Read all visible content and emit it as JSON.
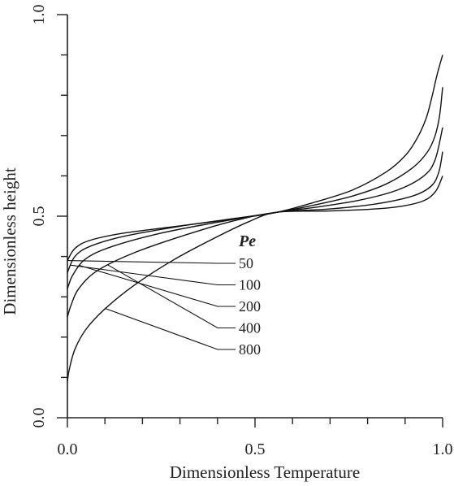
{
  "chart_data": {
    "type": "line",
    "title": "",
    "xlabel": "Dimensionless Temperature",
    "ylabel": "Dimensionless height",
    "xlim": [
      0.0,
      1.0
    ],
    "ylim": [
      0.0,
      1.0
    ],
    "x_tick_labels": [
      "0.0",
      "0.5",
      "1.0"
    ],
    "y_tick_labels": [
      "0.0",
      "0.5",
      "1.0"
    ],
    "x_ticks": [
      0.0,
      0.1,
      0.2,
      0.3,
      0.4,
      0.5,
      0.6,
      0.7,
      0.8,
      0.9,
      1.0
    ],
    "y_ticks": [
      0.0,
      0.1,
      0.2,
      0.3,
      0.4,
      0.5,
      0.6,
      0.7,
      0.8,
      0.9,
      1.0
    ],
    "grid": false,
    "legend": {
      "title": "Pe",
      "placement": "center-right"
    },
    "series": [
      {
        "name": "50",
        "points": [
          [
            0.0,
            0.39
          ],
          [
            0.02,
            0.42
          ],
          [
            0.06,
            0.44
          ],
          [
            0.15,
            0.458
          ],
          [
            0.3,
            0.476
          ],
          [
            0.45,
            0.494
          ],
          [
            0.56,
            0.51
          ],
          [
            0.66,
            0.535
          ],
          [
            0.76,
            0.565
          ],
          [
            0.85,
            0.61
          ],
          [
            0.9,
            0.65
          ],
          [
            0.93,
            0.69
          ],
          [
            0.955,
            0.74
          ],
          [
            0.97,
            0.79
          ],
          [
            0.985,
            0.85
          ],
          [
            1.0,
            0.9
          ]
        ]
      },
      {
        "name": "100",
        "points": [
          [
            0.0,
            0.36
          ],
          [
            0.02,
            0.4
          ],
          [
            0.06,
            0.425
          ],
          [
            0.15,
            0.45
          ],
          [
            0.3,
            0.475
          ],
          [
            0.45,
            0.495
          ],
          [
            0.56,
            0.51
          ],
          [
            0.66,
            0.528
          ],
          [
            0.76,
            0.55
          ],
          [
            0.85,
            0.58
          ],
          [
            0.92,
            0.62
          ],
          [
            0.96,
            0.66
          ],
          [
            0.98,
            0.7
          ],
          [
            0.992,
            0.75
          ],
          [
            1.0,
            0.82
          ]
        ]
      },
      {
        "name": "200",
        "points": [
          [
            0.0,
            0.32
          ],
          [
            0.015,
            0.355
          ],
          [
            0.05,
            0.395
          ],
          [
            0.12,
            0.425
          ],
          [
            0.25,
            0.458
          ],
          [
            0.4,
            0.485
          ],
          [
            0.56,
            0.51
          ],
          [
            0.66,
            0.522
          ],
          [
            0.78,
            0.54
          ],
          [
            0.88,
            0.565
          ],
          [
            0.95,
            0.6
          ],
          [
            0.98,
            0.64
          ],
          [
            1.0,
            0.72
          ]
        ]
      },
      {
        "name": "400",
        "points": [
          [
            0.0,
            0.25
          ],
          [
            0.01,
            0.28
          ],
          [
            0.03,
            0.32
          ],
          [
            0.08,
            0.365
          ],
          [
            0.18,
            0.41
          ],
          [
            0.32,
            0.455
          ],
          [
            0.45,
            0.49
          ],
          [
            0.56,
            0.51
          ],
          [
            0.7,
            0.518
          ],
          [
            0.82,
            0.53
          ],
          [
            0.92,
            0.55
          ],
          [
            0.97,
            0.575
          ],
          [
            0.99,
            0.61
          ],
          [
            1.0,
            0.66
          ]
        ]
      },
      {
        "name": "800",
        "points": [
          [
            0.0,
            0.09
          ],
          [
            0.005,
            0.12
          ],
          [
            0.02,
            0.17
          ],
          [
            0.05,
            0.22
          ],
          [
            0.1,
            0.27
          ],
          [
            0.18,
            0.33
          ],
          [
            0.28,
            0.39
          ],
          [
            0.38,
            0.44
          ],
          [
            0.48,
            0.485
          ],
          [
            0.56,
            0.51
          ],
          [
            0.7,
            0.513
          ],
          [
            0.85,
            0.52
          ],
          [
            0.94,
            0.535
          ],
          [
            0.98,
            0.56
          ],
          [
            1.0,
            0.6
          ]
        ]
      }
    ]
  }
}
